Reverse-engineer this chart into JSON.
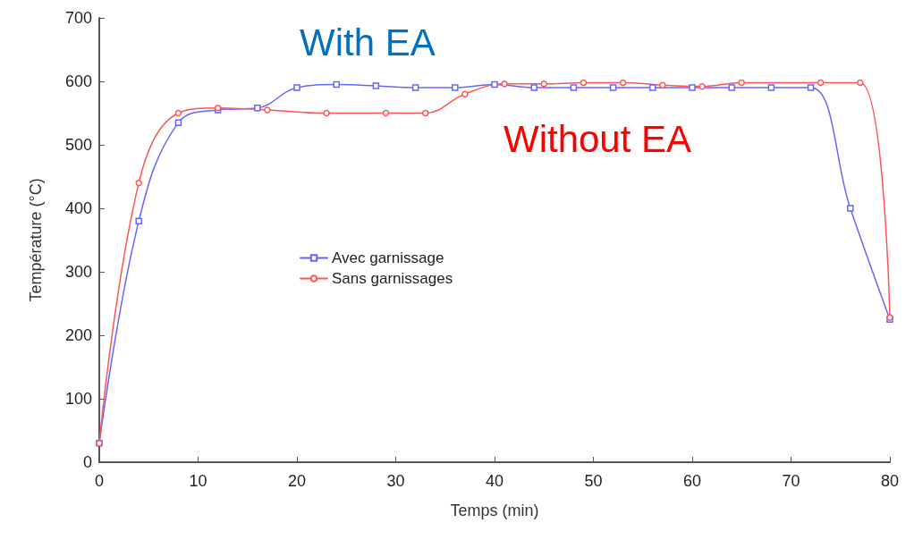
{
  "chart_data": {
    "type": "line",
    "xlabel": "Temps (min)",
    "ylabel": "Température (°C)",
    "annotations": [
      "With EA",
      "Without EA"
    ],
    "xlim": [
      0,
      80
    ],
    "xticks": [
      0,
      10,
      20,
      30,
      40,
      50,
      60,
      70,
      80
    ],
    "ylim": [
      0,
      700
    ],
    "yticks": [
      0,
      100,
      200,
      300,
      400,
      500,
      600,
      700
    ],
    "grid": false,
    "legend": "left",
    "line_style": "solid",
    "series": [
      {
        "name": "Avec garnissage",
        "color": "#6666ff",
        "marker": "square",
        "x": [
          0,
          4,
          8,
          12,
          16,
          20,
          24,
          28,
          32,
          36,
          40,
          44,
          48,
          52,
          56,
          60,
          64,
          68,
          72,
          76,
          80
        ],
        "values": [
          30,
          380,
          535,
          555,
          558,
          590,
          595,
          593,
          590,
          590,
          595,
          590,
          590,
          590,
          590,
          590,
          590,
          590,
          590,
          400,
          225
        ]
      },
      {
        "name": "Sans garnissages",
        "color": "#ff5555",
        "marker": "circle",
        "x": [
          0,
          4,
          8,
          12,
          17,
          23,
          29,
          33,
          37,
          41,
          45,
          49,
          53,
          57,
          61,
          65,
          73,
          77,
          80
        ],
        "values": [
          30,
          440,
          550,
          558,
          555,
          550,
          550,
          550,
          580,
          596,
          596,
          598,
          598,
          594,
          592,
          598,
          598,
          598,
          228
        ]
      }
    ]
  }
}
